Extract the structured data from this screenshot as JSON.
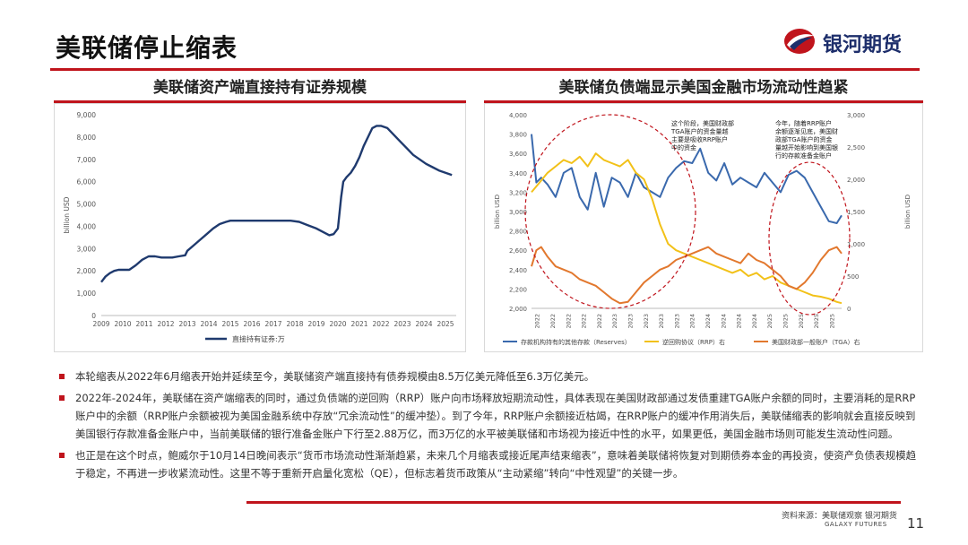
{
  "slide": {
    "title": "美联储停止缩表",
    "brand": "银河期货",
    "source": "资料来源：美联储观察 银河期货",
    "footer_brand": "GALAXY FUTURES",
    "page_number": "11"
  },
  "colors": {
    "accent": "#c0141c",
    "navy": "#1d2e6b",
    "series_blue": "#3a69ad",
    "series_yellow": "#f2c118",
    "series_orange": "#e2782e"
  },
  "panels": {
    "left_title": "美联储资产端直接持有证券规模",
    "right_title": "美联储负债端显示美国金融市场流动性趋紧"
  },
  "chart_data": [
    {
      "type": "line",
      "title": "",
      "ylabel": "billion USD",
      "ylim": [
        0,
        9000
      ],
      "yticks": [
        "0",
        "1,000",
        "2,000",
        "3,000",
        "4,000",
        "5,000",
        "6,000",
        "7,000",
        "8,000",
        "9,000"
      ],
      "xlim": [
        2009,
        2025.5
      ],
      "xticks": [
        "2009",
        "2010",
        "2011",
        "2012",
        "2013",
        "2014",
        "2015",
        "2016",
        "2017",
        "2018",
        "2019",
        "2020",
        "2021",
        "2022",
        "2023",
        "2024",
        "2025"
      ],
      "legend": "直接持有证券:万",
      "series": [
        {
          "name": "直接持有证券:万",
          "color": "#1f3a6e",
          "x": [
            2009.0,
            2009.2,
            2009.4,
            2009.6,
            2009.8,
            2010.0,
            2010.3,
            2010.6,
            2010.9,
            2011.2,
            2011.5,
            2011.8,
            2012.0,
            2012.3,
            2012.6,
            2012.9,
            2013.0,
            2013.3,
            2013.6,
            2013.9,
            2014.2,
            2014.5,
            2014.8,
            2015.0,
            2015.5,
            2016.0,
            2016.5,
            2017.0,
            2017.5,
            2017.8,
            2018.2,
            2018.6,
            2019.0,
            2019.4,
            2019.6,
            2019.8,
            2020.0,
            2020.15,
            2020.25,
            2020.4,
            2020.6,
            2020.8,
            2021.0,
            2021.2,
            2021.4,
            2021.6,
            2021.8,
            2022.0,
            2022.3,
            2022.6,
            2022.9,
            2023.2,
            2023.5,
            2023.8,
            2024.1,
            2024.4,
            2024.7,
            2025.0,
            2025.3
          ],
          "y": [
            1500,
            1750,
            1900,
            2000,
            2050,
            2050,
            2050,
            2250,
            2500,
            2650,
            2650,
            2600,
            2600,
            2600,
            2650,
            2700,
            2900,
            3150,
            3400,
            3650,
            3900,
            4100,
            4200,
            4250,
            4250,
            4250,
            4250,
            4250,
            4250,
            4250,
            4200,
            4050,
            3900,
            3700,
            3600,
            3650,
            3900,
            5300,
            6000,
            6200,
            6400,
            6700,
            7100,
            7600,
            8000,
            8400,
            8500,
            8500,
            8400,
            8100,
            7800,
            7500,
            7200,
            7000,
            6800,
            6650,
            6500,
            6400,
            6300
          ]
        }
      ]
    },
    {
      "type": "line",
      "title": "",
      "ylabel": "billion USD",
      "y2label": "billion USD",
      "ylim": [
        2000,
        4000
      ],
      "yticks": [
        "2,000",
        "2,200",
        "2,400",
        "2,600",
        "2,800",
        "3,000",
        "3,200",
        "3,400",
        "3,600",
        "3,800",
        "4,000"
      ],
      "y2lim": [
        0,
        3000
      ],
      "y2ticks": [
        "0",
        "500",
        "1,000",
        "1,500",
        "2,000",
        "2,500",
        "3,000"
      ],
      "xticks": [
        "2022",
        "2022",
        "2022",
        "2022",
        "2022",
        "2023",
        "2023",
        "2023",
        "2023",
        "2023",
        "2024",
        "2024",
        "2024",
        "2024",
        "2024",
        "2025",
        "2025",
        "2025",
        "2025",
        "2025"
      ],
      "annotations": [
        "这个阶段，美国财政部TGA账户的资金量越主要是吸收RRP账户中的资金",
        "今年，随着RRP账户余额逐渐见底，美国财政部TGA账户的资金量越开始影响到美国银行的存款准备金账户"
      ],
      "legend": [
        "存款机构持有的其他存款（Reserves）",
        "逆回购协议（RRP）右",
        "美国财政部一般账户（TGA）右"
      ],
      "series": [
        {
          "name": "存款机构持有的其他存款（Reserves）",
          "axis": "left",
          "color": "#3a69ad",
          "x": [
            0.0,
            0.3,
            0.6,
            1.0,
            1.5,
            2.0,
            2.5,
            3.0,
            3.5,
            4.0,
            4.5,
            5.0,
            5.5,
            6.0,
            6.5,
            7.0,
            7.5,
            8.0,
            8.5,
            9.0,
            9.5,
            10.0,
            10.5,
            11.0,
            11.5,
            12.0,
            12.5,
            13.0,
            13.5,
            14.0,
            14.5,
            15.0,
            15.5,
            16.0,
            16.5,
            17.0,
            17.5,
            18.0,
            18.5,
            19.0,
            19.3
          ],
          "y": [
            3800,
            3300,
            3350,
            3280,
            3150,
            3400,
            3450,
            3150,
            3020,
            3400,
            3050,
            3350,
            3300,
            3150,
            3400,
            3250,
            3200,
            3150,
            3350,
            3450,
            3520,
            3500,
            3650,
            3400,
            3320,
            3500,
            3280,
            3350,
            3300,
            3250,
            3400,
            3300,
            3200,
            3380,
            3420,
            3350,
            3200,
            3050,
            2900,
            2880,
            2960
          ]
        },
        {
          "name": "逆回购协议（RRP）右",
          "axis": "right",
          "color": "#f2c118",
          "x": [
            0.0,
            0.5,
            1.0,
            1.5,
            2.0,
            2.5,
            3.0,
            3.5,
            4.0,
            4.5,
            5.0,
            5.5,
            6.0,
            6.5,
            7.0,
            7.5,
            8.0,
            8.5,
            9.0,
            9.5,
            10.0,
            10.5,
            11.0,
            11.5,
            12.0,
            12.5,
            13.0,
            13.5,
            14.0,
            14.5,
            15.0,
            15.5,
            16.0,
            16.5,
            17.0,
            17.5,
            18.0,
            18.5,
            19.0,
            19.3
          ],
          "y": [
            1800,
            1950,
            2100,
            2200,
            2300,
            2250,
            2350,
            2200,
            2400,
            2300,
            2250,
            2200,
            2300,
            2100,
            2000,
            1700,
            1300,
            1000,
            900,
            850,
            800,
            750,
            700,
            650,
            600,
            550,
            600,
            500,
            550,
            450,
            500,
            400,
            350,
            300,
            250,
            200,
            180,
            150,
            100,
            80
          ]
        },
        {
          "name": "美国财政部一般账户（TGA）右",
          "axis": "right",
          "color": "#e2782e",
          "x": [
            0.0,
            0.3,
            0.6,
            1.0,
            1.5,
            2.0,
            2.5,
            3.0,
            3.5,
            4.0,
            4.5,
            5.0,
            5.5,
            6.0,
            6.5,
            7.0,
            7.5,
            8.0,
            8.5,
            9.0,
            9.5,
            10.0,
            10.5,
            11.0,
            11.5,
            12.0,
            12.5,
            13.0,
            13.5,
            14.0,
            14.5,
            15.0,
            15.5,
            16.0,
            16.5,
            17.0,
            17.5,
            18.0,
            18.5,
            19.0,
            19.3
          ],
          "y": [
            650,
            900,
            950,
            800,
            650,
            600,
            550,
            450,
            400,
            350,
            250,
            150,
            80,
            100,
            250,
            400,
            500,
            600,
            650,
            750,
            800,
            850,
            900,
            950,
            850,
            800,
            750,
            700,
            850,
            750,
            700,
            600,
            500,
            350,
            300,
            400,
            550,
            750,
            900,
            950,
            850
          ]
        }
      ]
    }
  ],
  "bullets": [
    "本轮缩表从2022年6月缩表开始并延续至今，美联储资产端直接持有债券规模由8.5万亿美元降低至6.3万亿美元。",
    "2022年-2024年，美联储在资产端缩表的同时，通过负债端的逆回购（RRP）账户向市场释放短期流动性，具体表现在美国财政部通过发债重建TGA账户余额的同时，主要消耗的是RRP账户中的余额（RRP账户余额被视为美国金融系统中存放“冗余流动性”的缓冲垫）。到了今年，RRP账户余额接近枯竭，在RRP账户的缓冲作用消失后，美联储缩表的影响就会直接反映到美国银行存款准备金账户中，当前美联储的银行准备金账户下行至2.88万亿，而3万亿的水平被美联储和市场视为接近中性的水平，如果更低，美国金融市场则可能发生流动性问题。",
    "也正是在这个时点，鲍威尔于10月14日晚间表示“货币市场流动性渐渐趋紧，未来几个月缩表或接近尾声结束缩表”，意味着美联储将恢复对到期债券本金的再投资，使资产负债表规模趋于稳定，不再进一步收紧流动性。这里不等于重新开启量化宽松（QE），但标志着货币政策从“主动紧缩”转向“中性观望”的关键一步。"
  ]
}
